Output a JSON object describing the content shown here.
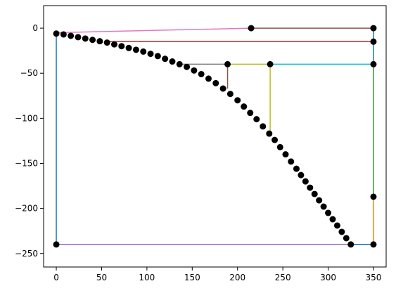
{
  "chart_data": {
    "type": "line",
    "xlim": [
      -14,
      364
    ],
    "ylim": [
      -265,
      25
    ],
    "xticks": [
      0,
      50,
      100,
      150,
      200,
      250,
      300,
      350
    ],
    "yticks": [
      {
        "value": -250,
        "label": "−250"
      },
      {
        "value": -200,
        "label": "−200"
      },
      {
        "value": -150,
        "label": "−150"
      },
      {
        "value": -100,
        "label": "−100"
      },
      {
        "value": -50,
        "label": "−50"
      },
      0
    ],
    "series": [
      {
        "style": "line",
        "color": "#1f77b4",
        "x": [
          0,
          0
        ],
        "values": [
          -6,
          -240
        ]
      },
      {
        "style": "line",
        "color": "#9467bd",
        "x": [
          0,
          350
        ],
        "values": [
          -240,
          -240
        ]
      },
      {
        "style": "line",
        "color": "#1f77b4",
        "x": [
          325,
          350
        ],
        "values": [
          -240,
          -240
        ]
      },
      {
        "style": "line",
        "color": "#ff7f0e",
        "x": [
          350,
          350
        ],
        "values": [
          -187,
          -240
        ]
      },
      {
        "style": "line",
        "color": "#2ca02c",
        "x": [
          350,
          350
        ],
        "values": [
          -40,
          -187
        ]
      },
      {
        "style": "line",
        "color": "#1f77b4",
        "x": [
          350,
          350
        ],
        "values": [
          0,
          -40
        ]
      },
      {
        "style": "line",
        "color": "#17becf",
        "x": [
          236,
          350
        ],
        "values": [
          -40,
          -40
        ]
      },
      {
        "style": "line",
        "color": "#bcbd22",
        "x": [
          190,
          236,
          236
        ],
        "values": [
          -40,
          -40,
          -115
        ]
      },
      {
        "style": "line",
        "color": "#7f7f7f",
        "x": [
          136,
          190
        ],
        "values": [
          -40,
          -40
        ]
      },
      {
        "style": "line",
        "color": "#8c564b",
        "x": [
          189,
          189
        ],
        "values": [
          -40,
          -67
        ]
      },
      {
        "style": "line",
        "color": "#d62728",
        "x": [
          56,
          350
        ],
        "values": [
          -15,
          -15
        ]
      },
      {
        "style": "line",
        "color": "#e377c2",
        "x": [
          0,
          215
        ],
        "values": [
          -5,
          0
        ]
      },
      {
        "style": "line",
        "color": "#8c564b",
        "x": [
          215,
          350
        ],
        "values": [
          0,
          0
        ]
      },
      {
        "style": "points",
        "color": "#000000",
        "x": [
          0,
          8,
          16,
          24,
          32,
          40,
          48,
          56,
          64,
          72,
          80,
          88,
          96,
          104,
          112,
          120,
          128,
          136,
          144,
          152,
          160,
          168,
          176,
          184,
          192,
          200,
          207,
          214,
          221,
          228,
          235,
          241,
          247,
          253,
          259,
          265,
          270,
          275,
          280,
          285,
          290,
          295,
          300,
          305,
          310,
          315,
          320,
          325
        ],
        "values": [
          -6,
          -7,
          -8.5,
          -10,
          -11.5,
          -13,
          -14.5,
          -16,
          -18,
          -20,
          -22,
          -24,
          -26,
          -28.5,
          -31,
          -34,
          -37,
          -40,
          -43,
          -47,
          -51,
          -56,
          -61,
          -67,
          -73,
          -80,
          -87,
          -94,
          -101,
          -109,
          -117,
          -124,
          -132,
          -140,
          -148,
          -156,
          -163,
          -170,
          -177,
          -184,
          -191,
          -198,
          -205,
          -212,
          -219,
          -226,
          -233,
          -240
        ]
      },
      {
        "style": "points",
        "color": "#000000",
        "x": [
          215,
          350,
          350,
          350,
          189,
          236,
          350,
          350,
          0
        ],
        "values": [
          0,
          0,
          -15,
          -40,
          -40,
          -40,
          -187,
          -240,
          -240
        ]
      }
    ]
  }
}
